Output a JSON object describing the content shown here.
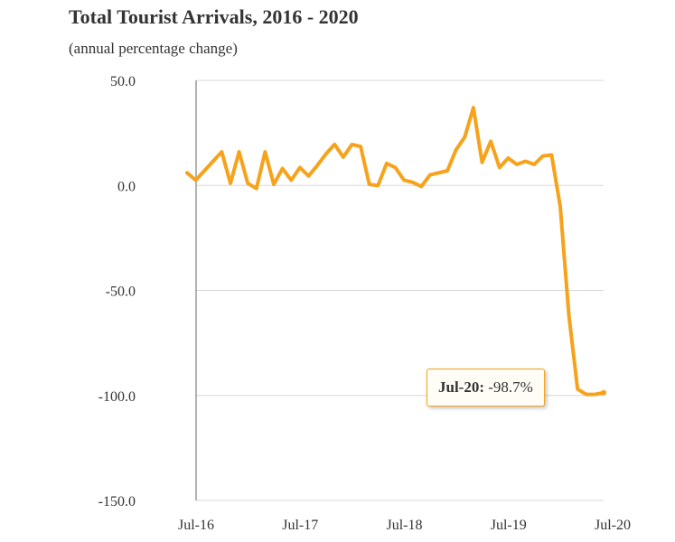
{
  "chart_data": {
    "type": "line",
    "title": "Total Tourist Arrivals, 2016 - 2020",
    "subtitle": "(annual percentage change)",
    "xlabel": "",
    "ylabel": "",
    "ylim": [
      -150,
      50
    ],
    "yticks": [
      50,
      0,
      -50,
      -100,
      -150
    ],
    "ytick_labels": [
      "50.0",
      "0.0",
      "-50.0",
      "-100.0",
      "-150.0"
    ],
    "xtick_labels": [
      "Jul-16",
      "Jul-17",
      "Jul-18",
      "Jul-19",
      "Jul-20"
    ],
    "x": [
      "Jul-16",
      "Aug-16",
      "Sep-16",
      "Oct-16",
      "Nov-16",
      "Dec-16",
      "Jan-17",
      "Feb-17",
      "Mar-17",
      "Apr-17",
      "May-17",
      "Jun-17",
      "Jul-17",
      "Aug-17",
      "Sep-17",
      "Oct-17",
      "Nov-17",
      "Dec-17",
      "Jan-18",
      "Feb-18",
      "Mar-18",
      "Apr-18",
      "May-18",
      "Jun-18",
      "Jul-18",
      "Aug-18",
      "Sep-18",
      "Oct-18",
      "Nov-18",
      "Dec-18",
      "Jan-19",
      "Feb-19",
      "Mar-19",
      "Apr-19",
      "May-19",
      "Jun-19",
      "Jul-19",
      "Aug-19",
      "Sep-19",
      "Oct-19",
      "Nov-19",
      "Dec-19",
      "Jan-20",
      "Feb-20",
      "Mar-20",
      "Apr-20",
      "May-20",
      "Jun-20",
      "Jul-20"
    ],
    "series": [
      {
        "color": "#f7a21b",
        "values": [
          6.0,
          2.5,
          7.0,
          11.5,
          16.0,
          1.0,
          16.0,
          1.0,
          -1.5,
          16.0,
          0.5,
          8.0,
          2.5,
          8.5,
          4.5,
          9.5,
          15.0,
          19.5,
          13.5,
          19.5,
          18.5,
          0.5,
          0.0,
          10.5,
          8.5,
          2.5,
          1.5,
          -0.5,
          5.0,
          6.0,
          7.0,
          17.0,
          23.0,
          37.0,
          11.0,
          21.0,
          8.5,
          13.0,
          10.0,
          11.5,
          10.0,
          14.0,
          14.5,
          -10.0,
          -62.0,
          -97.0,
          -99.5,
          -99.5,
          -98.7
        ]
      }
    ],
    "tooltip": {
      "label": "Jul-20:",
      "value": "-98.7%"
    },
    "grid": true,
    "legend": "none"
  }
}
